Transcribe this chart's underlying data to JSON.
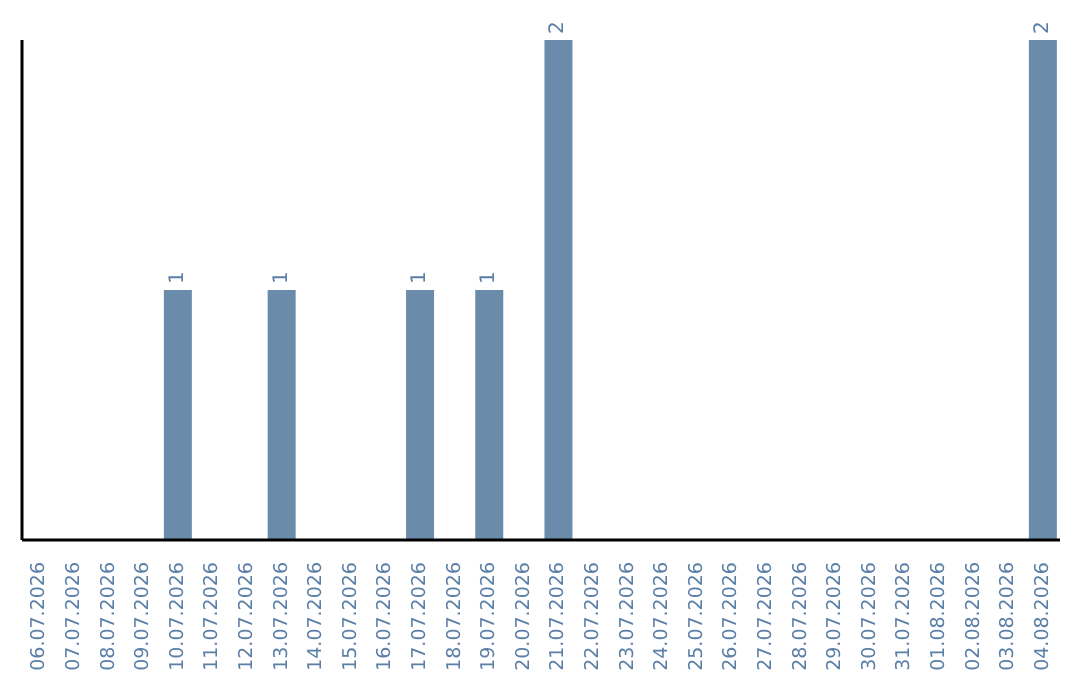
{
  "chart_data": {
    "type": "bar",
    "categories": [
      "06.07.2026",
      "07.07.2026",
      "08.07.2026",
      "09.07.2026",
      "10.07.2026",
      "11.07.2026",
      "12.07.2026",
      "13.07.2026",
      "14.07.2026",
      "15.07.2026",
      "16.07.2026",
      "17.07.2026",
      "18.07.2026",
      "19.07.2026",
      "20.07.2026",
      "21.07.2026",
      "22.07.2026",
      "23.07.2026",
      "24.07.2026",
      "25.07.2026",
      "26.07.2026",
      "27.07.2026",
      "28.07.2026",
      "29.07.2026",
      "30.07.2026",
      "31.07.2026",
      "01.08.2026",
      "02.08.2026",
      "03.08.2026",
      "04.08.2026"
    ],
    "values": [
      0,
      0,
      0,
      0,
      1,
      0,
      0,
      1,
      0,
      0,
      0,
      1,
      0,
      1,
      0,
      2,
      0,
      0,
      0,
      0,
      0,
      0,
      0,
      0,
      0,
      0,
      0,
      0,
      0,
      2
    ],
    "value_labels": [
      null,
      null,
      null,
      null,
      "1",
      null,
      null,
      "1",
      null,
      null,
      null,
      "1",
      null,
      "1",
      null,
      "2",
      null,
      null,
      null,
      null,
      null,
      null,
      null,
      null,
      null,
      null,
      null,
      null,
      null,
      "2"
    ],
    "color": "#6a8caa",
    "ylim": [
      0,
      2
    ],
    "tick_labels": "x"
  }
}
